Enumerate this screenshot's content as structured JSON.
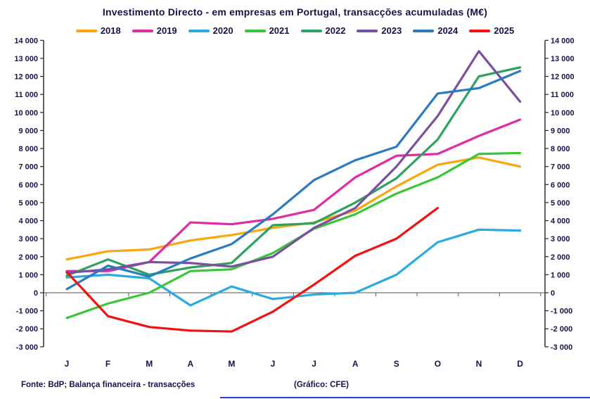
{
  "chart_data": {
    "type": "line",
    "title": "Investimento  Directo - em empresas em Portugal,  transacções acumuladas  (M€)",
    "x_categories": [
      "J",
      "F",
      "M",
      "A",
      "M",
      "J",
      "J",
      "A",
      "S",
      "O",
      "N",
      "D"
    ],
    "y_axis": {
      "min": -3000,
      "max": 14000,
      "step": 1000,
      "tick_labels": [
        "-3 000",
        "-2 000",
        "-1 000",
        "0",
        "1 000",
        "2 000",
        "3 000",
        "4 000",
        "5 000",
        "6 000",
        "7 000",
        "8 000",
        "9 000",
        "10 000",
        "11 000",
        "12 000",
        "13 000",
        "14 000"
      ],
      "sides": [
        "left",
        "right"
      ],
      "zero_line": true,
      "grid": false
    },
    "legend_position": "top",
    "series": [
      {
        "name": "2018",
        "color": "#FBA50F",
        "values": [
          1850,
          2300,
          2400,
          2900,
          3200,
          3600,
          3900,
          4550,
          5900,
          7100,
          7500,
          7000
        ]
      },
      {
        "name": "2019",
        "color": "#E02BA4",
        "values": [
          1200,
          1200,
          1700,
          3900,
          3800,
          4100,
          4600,
          6400,
          7600,
          7700,
          8700,
          9600
        ]
      },
      {
        "name": "2020",
        "color": "#29ABE2",
        "values": [
          850,
          1000,
          800,
          -700,
          350,
          -350,
          -100,
          0,
          1000,
          2800,
          3500,
          3450
        ]
      },
      {
        "name": "2021",
        "color": "#39C639",
        "values": [
          -1400,
          -600,
          0,
          1200,
          1300,
          2200,
          3550,
          4350,
          5500,
          6400,
          7700,
          7750
        ]
      },
      {
        "name": "2022",
        "color": "#2EA25E",
        "values": [
          950,
          1850,
          1000,
          1400,
          1650,
          3750,
          3850,
          5000,
          6350,
          8500,
          12000,
          12500
        ]
      },
      {
        "name": "2023",
        "color": "#7A4FA0",
        "values": [
          1100,
          1300,
          1700,
          1650,
          1450,
          2000,
          3600,
          4700,
          7000,
          9800,
          13400,
          10600
        ]
      },
      {
        "name": "2024",
        "color": "#2B7BC2",
        "values": [
          200,
          1500,
          900,
          1900,
          2700,
          4350,
          6250,
          7350,
          8100,
          11050,
          11350,
          12300
        ]
      },
      {
        "name": "2025",
        "color": "#F50F0F",
        "values": [
          1150,
          -1300,
          -1900,
          -2100,
          -2150,
          -1050,
          450,
          2050,
          3000,
          4700,
          null,
          null
        ]
      }
    ],
    "footnote_left": "Fonte: BdP; Balança financeira - transacções",
    "footnote_center": "(Gráfico: CFE)"
  }
}
